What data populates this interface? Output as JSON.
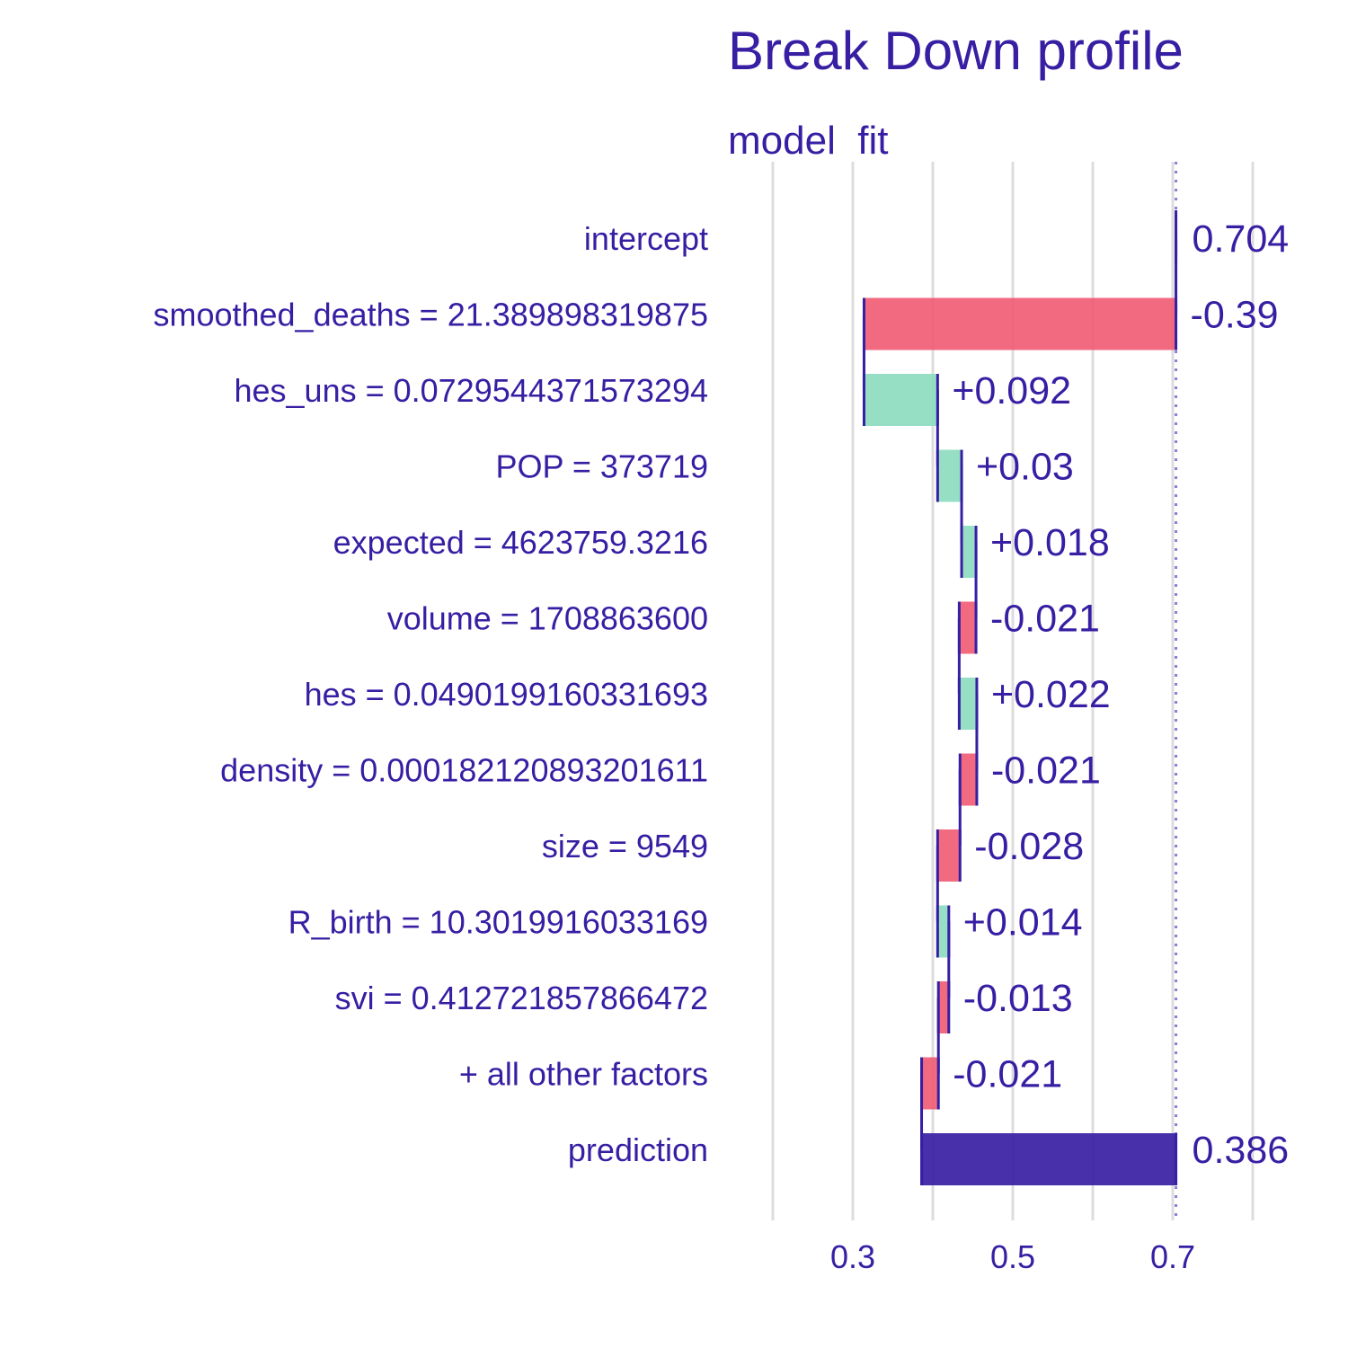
{
  "chart_data": {
    "type": "waterfall",
    "title": "Break Down profile",
    "panel_label": "model  fit",
    "xlabel": "",
    "ylabel": "",
    "xlim": [
      0.18,
      0.82
    ],
    "x_ticks": [
      0.3,
      0.5,
      0.7
    ],
    "x_tick_labels": [
      "0.3",
      "0.5",
      "0.7"
    ],
    "gridlines_x": [
      0.2,
      0.3,
      0.4,
      0.5,
      0.6,
      0.7,
      0.8
    ],
    "grid": true,
    "baseline": 0.704,
    "rows": [
      {
        "label": "intercept",
        "start": 0.704,
        "end": 0.704,
        "kind": "intercept",
        "value_label": "0.704"
      },
      {
        "label": "smoothed_deaths = 21.389898319875",
        "start": 0.704,
        "end": 0.314,
        "kind": "negative",
        "value_label": "-0.39"
      },
      {
        "label": "hes_uns = 0.0729544371573294",
        "start": 0.314,
        "end": 0.406,
        "kind": "positive",
        "value_label": "+0.092"
      },
      {
        "label": "POP = 373719",
        "start": 0.406,
        "end": 0.436,
        "kind": "positive",
        "value_label": "+0.03"
      },
      {
        "label": "expected = 4623759.3216",
        "start": 0.436,
        "end": 0.454,
        "kind": "positive",
        "value_label": "+0.018"
      },
      {
        "label": "volume = 1708863600",
        "start": 0.454,
        "end": 0.433,
        "kind": "negative",
        "value_label": "-0.021"
      },
      {
        "label": "hes = 0.0490199160331693",
        "start": 0.433,
        "end": 0.455,
        "kind": "positive",
        "value_label": "+0.022"
      },
      {
        "label": "density = 0.000182120893201611",
        "start": 0.455,
        "end": 0.434,
        "kind": "negative",
        "value_label": "-0.021"
      },
      {
        "label": "size = 9549",
        "start": 0.434,
        "end": 0.406,
        "kind": "negative",
        "value_label": "-0.028"
      },
      {
        "label": "R_birth = 10.3019916033169",
        "start": 0.406,
        "end": 0.42,
        "kind": "positive",
        "value_label": "+0.014"
      },
      {
        "label": "svi = 0.412721857866472",
        "start": 0.42,
        "end": 0.407,
        "kind": "negative",
        "value_label": "-0.013"
      },
      {
        "label": "+ all other factors",
        "start": 0.407,
        "end": 0.386,
        "kind": "negative",
        "value_label": "-0.021"
      },
      {
        "label": "prediction",
        "start": 0.386,
        "end": 0.704,
        "kind": "prediction",
        "value_label": "0.386"
      }
    ],
    "colors": {
      "positive": "#8bdcbe",
      "negative": "#f05a71",
      "prediction": "#371ea3",
      "text": "#371ea3",
      "grid": "#dddddd",
      "baseline": "#8a7fd4"
    }
  }
}
